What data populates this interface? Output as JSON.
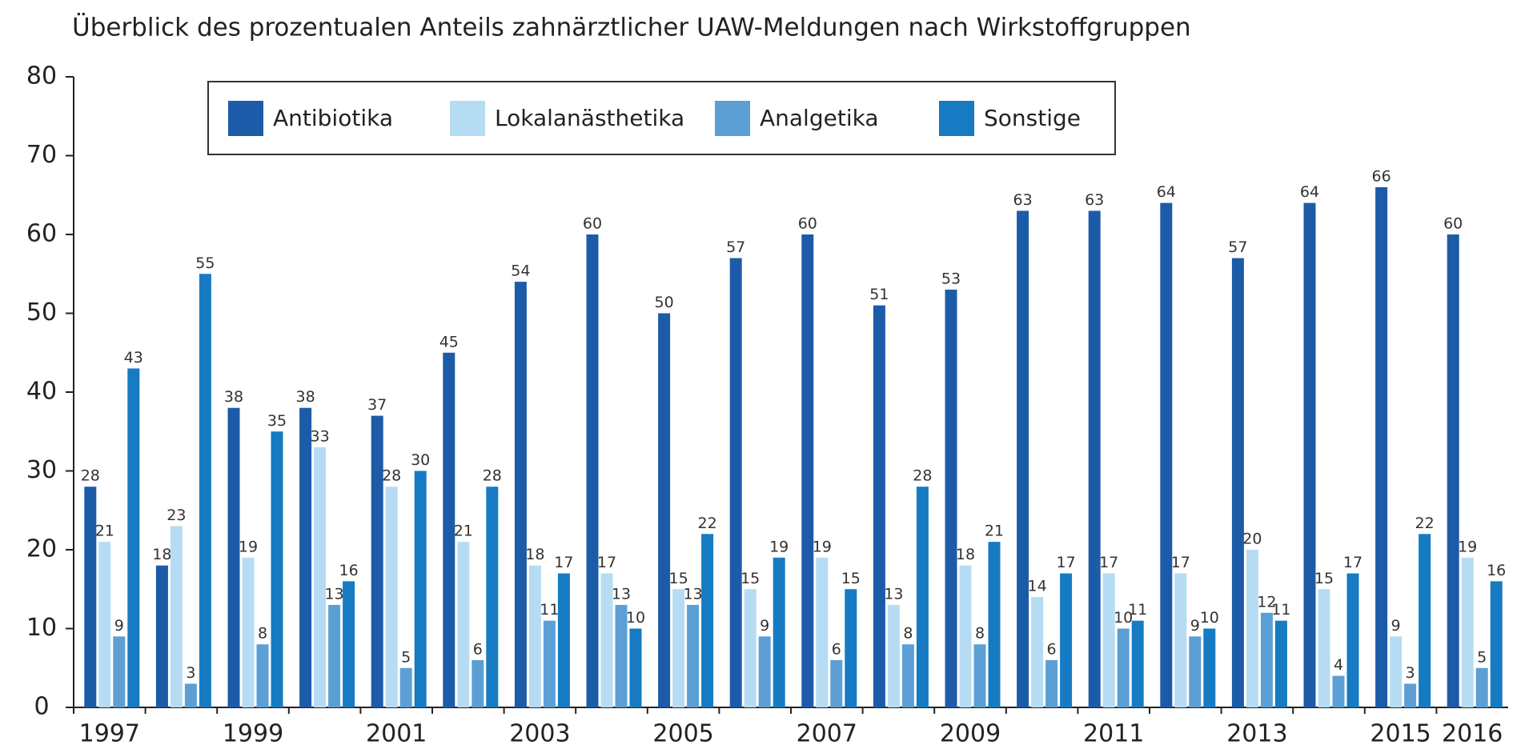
{
  "chart_data": {
    "type": "bar",
    "title": "Überblick des prozentualen Anteils zahnärztlicher UAW-Meldungen nach Wirkstoffgruppen",
    "categories": [
      "1997",
      null,
      "1999",
      null,
      "2001",
      null,
      "2003",
      null,
      "2005",
      null,
      "2007",
      null,
      "2009",
      null,
      "2011",
      null,
      "2013",
      null,
      "2015",
      "2016"
    ],
    "series": [
      {
        "name": "Antibiotika",
        "color": "#1c5ba8",
        "values": [
          28,
          18,
          38,
          38,
          37,
          45,
          54,
          60,
          50,
          57,
          60,
          51,
          53,
          63,
          63,
          64,
          57,
          64,
          66,
          60
        ]
      },
      {
        "name": "Lokalanästhetika",
        "color": "#b6dcf3",
        "values": [
          21,
          23,
          19,
          33,
          28,
          21,
          18,
          17,
          15,
          15,
          19,
          13,
          18,
          14,
          17,
          17,
          20,
          15,
          9,
          19
        ]
      },
      {
        "name": "Analgetika",
        "color": "#5b9fd5",
        "values": [
          9,
          3,
          8,
          13,
          5,
          6,
          11,
          13,
          13,
          9,
          6,
          8,
          8,
          6,
          10,
          9,
          12,
          4,
          3,
          5
        ]
      },
      {
        "name": "Sonstige",
        "color": "#167bc2",
        "values": [
          43,
          55,
          35,
          16,
          30,
          28,
          17,
          10,
          22,
          19,
          15,
          28,
          21,
          17,
          11,
          10,
          11,
          17,
          22,
          16
        ]
      }
    ],
    "ylim": [
      0,
      80
    ],
    "yticks": [
      0,
      10,
      20,
      30,
      40,
      50,
      60,
      70,
      80
    ],
    "grid": false
  }
}
